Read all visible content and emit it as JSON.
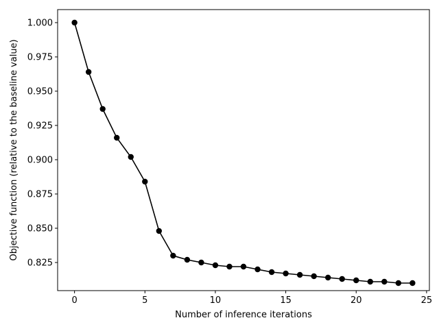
{
  "chart_data": {
    "type": "line",
    "title": "",
    "xlabel": "Number of inference iterations",
    "ylabel": "Objective function (relative to the baseline value)",
    "xlim": [
      -1.2,
      25.2
    ],
    "ylim": [
      0.8045,
      1.0095
    ],
    "xticks": [
      0,
      5,
      10,
      15,
      20,
      25
    ],
    "xtick_labels": [
      "0",
      "5",
      "10",
      "15",
      "20",
      "25"
    ],
    "yticks": [
      0.825,
      0.85,
      0.875,
      0.9,
      0.925,
      0.95,
      0.975,
      1.0
    ],
    "ytick_labels": [
      "0.825",
      "0.850",
      "0.875",
      "0.900",
      "0.925",
      "0.950",
      "0.975",
      "1.000"
    ],
    "grid": false,
    "legend": "none",
    "series": [
      {
        "color": "#000000",
        "marker": "circle",
        "x": [
          0,
          1,
          2,
          3,
          4,
          5,
          6,
          7,
          8,
          9,
          10,
          11,
          12,
          13,
          14,
          15,
          16,
          17,
          18,
          19,
          20,
          21,
          22,
          23,
          24
        ],
        "y": [
          1.0,
          0.964,
          0.937,
          0.916,
          0.902,
          0.884,
          0.848,
          0.83,
          0.827,
          0.825,
          0.823,
          0.822,
          0.822,
          0.82,
          0.818,
          0.817,
          0.816,
          0.815,
          0.814,
          0.813,
          0.812,
          0.811,
          0.811,
          0.81,
          0.81
        ]
      }
    ]
  }
}
